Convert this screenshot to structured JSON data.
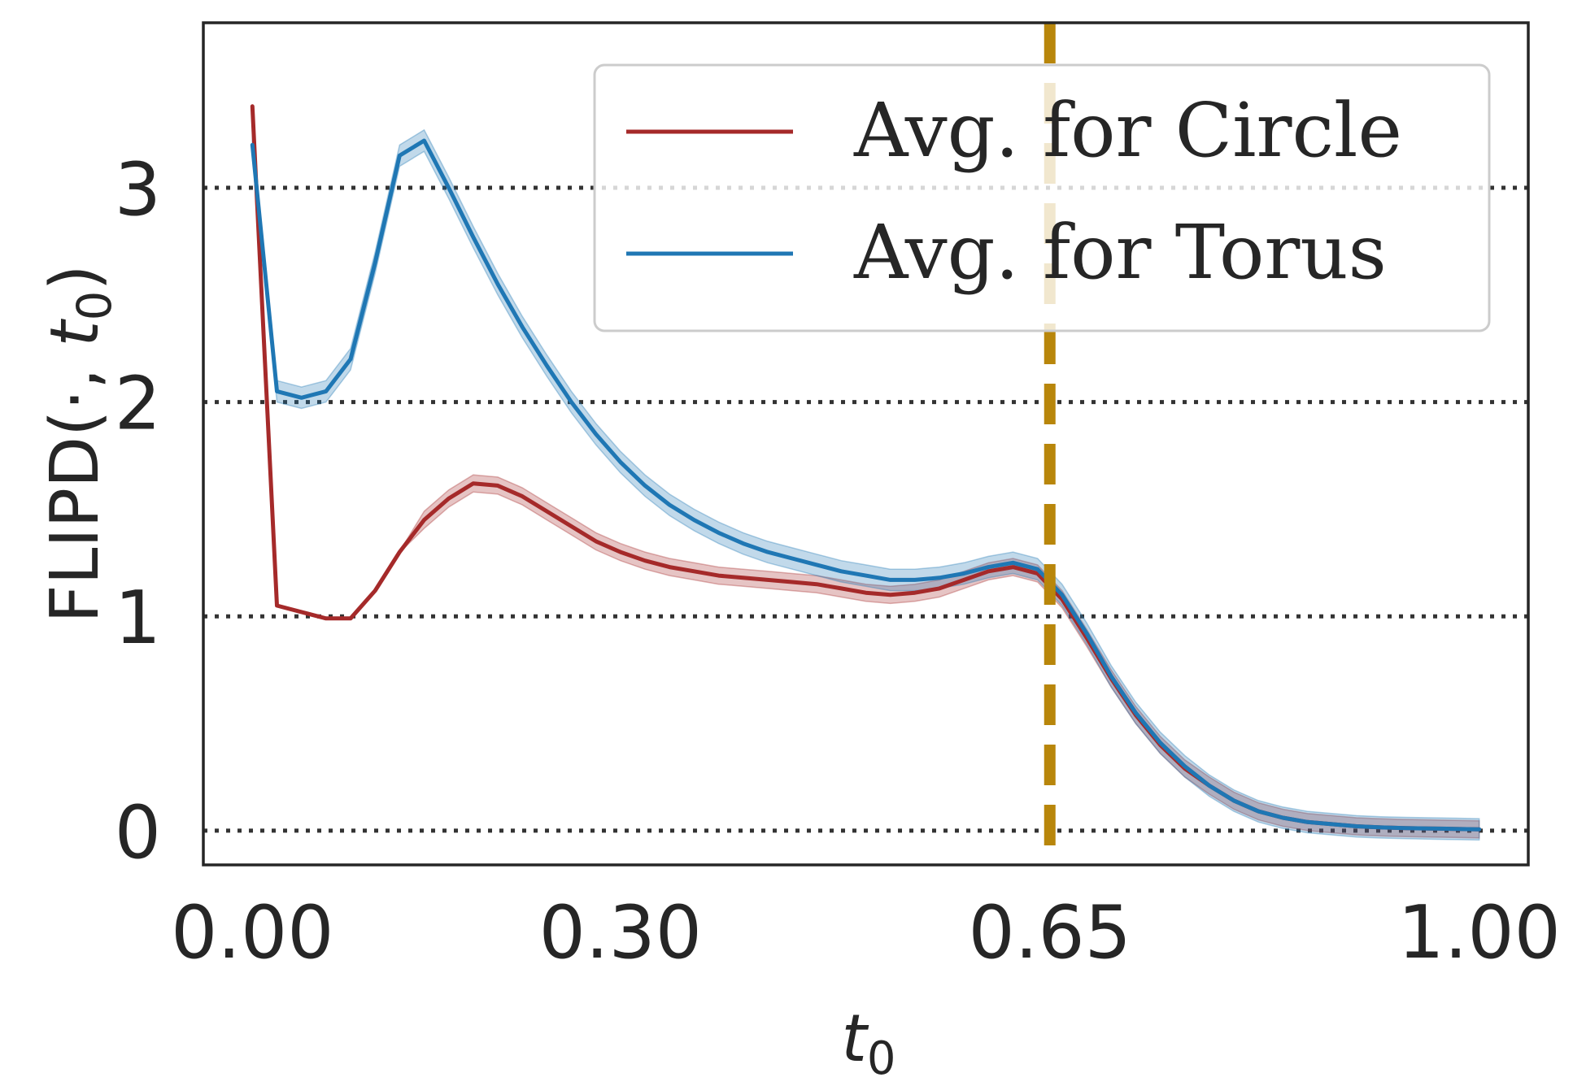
{
  "chart_data": {
    "type": "line",
    "title": "",
    "xlabel": "t",
    "xlabel_sub": "0",
    "ylabel_prefix": "FLIPD(",
    "ylabel_dot": "·",
    "ylabel_comma": ", ",
    "ylabel_var": "t",
    "ylabel_sub": "0",
    "ylabel_suffix": ")",
    "xlim": [
      -0.04,
      1.04
    ],
    "ylim": [
      -0.16,
      3.77
    ],
    "xticks": [
      0.0,
      0.3,
      0.65,
      1.0
    ],
    "xtick_labels": [
      "0.00",
      "0.30",
      "0.65",
      "1.00"
    ],
    "yticks": [
      0,
      1,
      2,
      3
    ],
    "ytick_labels": [
      "0",
      "1",
      "2",
      "3"
    ],
    "grid": "horizontal dotted",
    "legend_position": "top-right",
    "vline": {
      "x": 0.65,
      "style": "dashed",
      "color": "#b8860b"
    },
    "series": [
      {
        "name": "Avg. for Circle",
        "color": "#a52a2a",
        "x": [
          0.0,
          0.02,
          0.04,
          0.06,
          0.08,
          0.1,
          0.12,
          0.14,
          0.16,
          0.18,
          0.2,
          0.22,
          0.24,
          0.26,
          0.28,
          0.3,
          0.32,
          0.34,
          0.36,
          0.38,
          0.4,
          0.42,
          0.44,
          0.46,
          0.48,
          0.5,
          0.52,
          0.54,
          0.56,
          0.58,
          0.6,
          0.62,
          0.64,
          0.66,
          0.68,
          0.7,
          0.72,
          0.74,
          0.76,
          0.78,
          0.8,
          0.82,
          0.84,
          0.86,
          0.88,
          0.9,
          0.92,
          0.94,
          0.96,
          0.98,
          1.0
        ],
        "y": [
          3.38,
          1.05,
          1.02,
          0.99,
          0.99,
          1.12,
          1.3,
          1.45,
          1.55,
          1.62,
          1.61,
          1.56,
          1.49,
          1.42,
          1.35,
          1.3,
          1.26,
          1.23,
          1.21,
          1.19,
          1.18,
          1.17,
          1.16,
          1.15,
          1.13,
          1.11,
          1.1,
          1.11,
          1.13,
          1.17,
          1.21,
          1.23,
          1.2,
          1.08,
          0.9,
          0.71,
          0.54,
          0.4,
          0.29,
          0.21,
          0.14,
          0.09,
          0.06,
          0.04,
          0.03,
          0.02,
          0.015,
          0.012,
          0.01,
          0.008,
          0.006
        ],
        "band": 0.04,
        "band_start": 0.14
      },
      {
        "name": "Avg. for Torus",
        "color": "#1f77b4",
        "x": [
          0.0,
          0.02,
          0.04,
          0.06,
          0.08,
          0.1,
          0.12,
          0.14,
          0.16,
          0.18,
          0.2,
          0.22,
          0.24,
          0.26,
          0.28,
          0.3,
          0.32,
          0.34,
          0.36,
          0.38,
          0.4,
          0.42,
          0.44,
          0.46,
          0.48,
          0.5,
          0.52,
          0.54,
          0.56,
          0.58,
          0.6,
          0.62,
          0.64,
          0.66,
          0.68,
          0.7,
          0.72,
          0.74,
          0.76,
          0.78,
          0.8,
          0.82,
          0.84,
          0.86,
          0.88,
          0.9,
          0.92,
          0.94,
          0.96,
          0.98,
          1.0
        ],
        "y": [
          3.2,
          2.05,
          2.02,
          2.05,
          2.2,
          2.65,
          3.15,
          3.22,
          3.0,
          2.77,
          2.55,
          2.35,
          2.17,
          2.0,
          1.85,
          1.72,
          1.61,
          1.52,
          1.45,
          1.39,
          1.34,
          1.3,
          1.27,
          1.24,
          1.21,
          1.19,
          1.17,
          1.17,
          1.18,
          1.2,
          1.23,
          1.25,
          1.22,
          1.1,
          0.92,
          0.72,
          0.55,
          0.41,
          0.3,
          0.21,
          0.14,
          0.09,
          0.06,
          0.04,
          0.03,
          0.02,
          0.015,
          0.012,
          0.01,
          0.008,
          0.006
        ],
        "band": 0.05,
        "band_start": 0.0
      }
    ]
  }
}
